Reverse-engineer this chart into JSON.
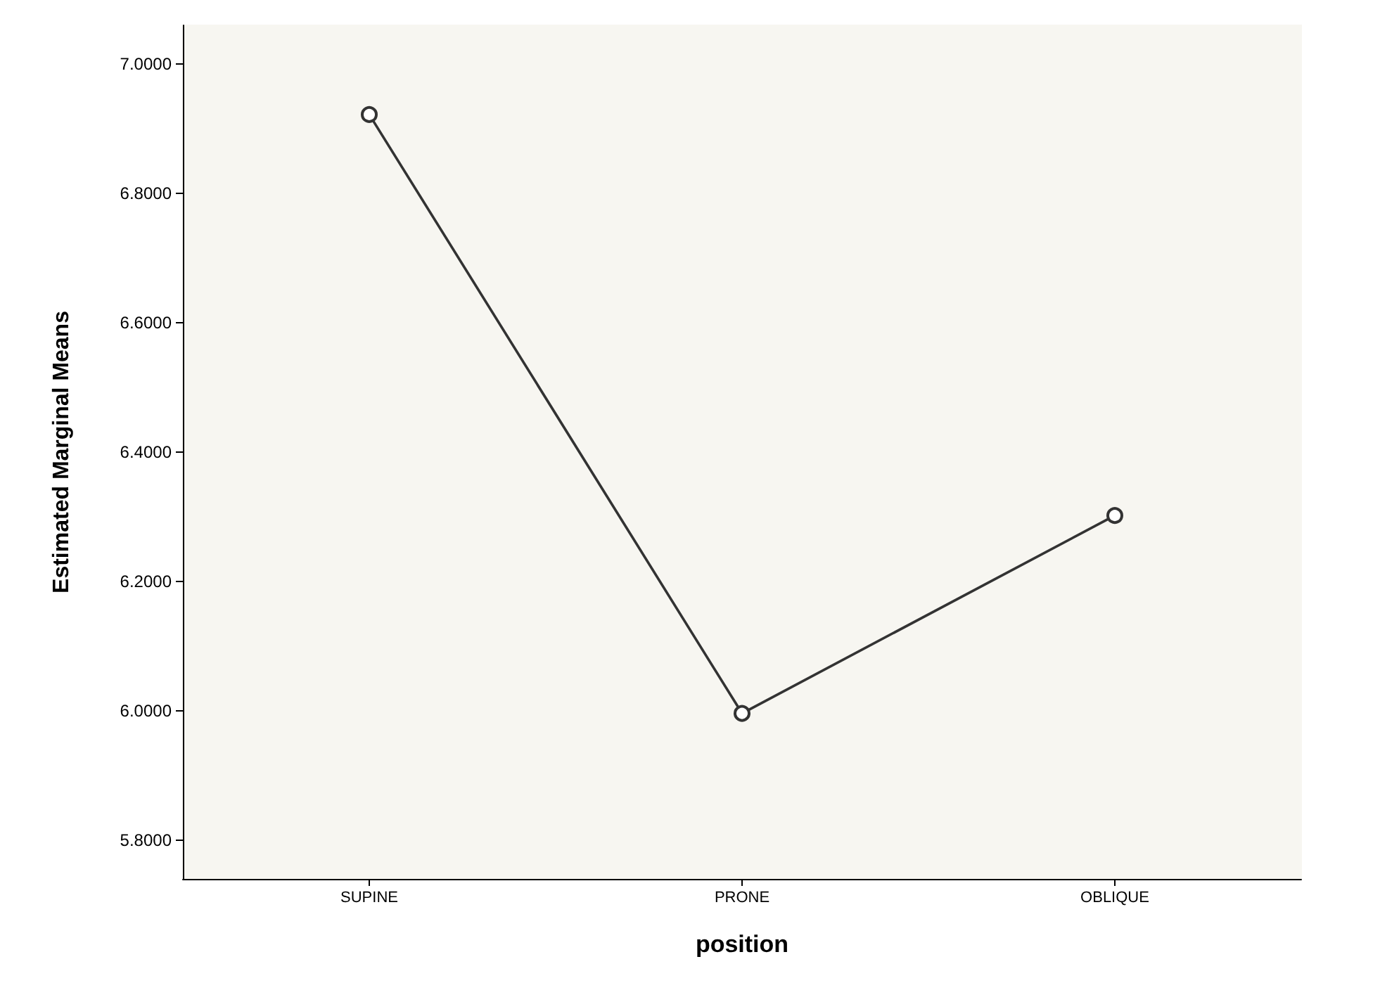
{
  "chart_data": {
    "type": "line",
    "xlabel": "position",
    "ylabel": "Estimated Marginal Means",
    "categories": [
      "SUPINE",
      "PRONE",
      "OBLIQUE"
    ],
    "series": [
      {
        "color": "#333333",
        "values": [
          6.922,
          5.996,
          6.302
        ]
      }
    ],
    "ylim": [
      5.74,
      7.06
    ],
    "yticks": [
      {
        "value": 5.8,
        "label": "5.8000"
      },
      {
        "value": 6.0,
        "label": "6.0000"
      },
      {
        "value": 6.2,
        "label": "6.2000"
      },
      {
        "value": 6.4,
        "label": "6.4000"
      },
      {
        "value": 6.6,
        "label": "6.6000"
      },
      {
        "value": 6.8,
        "label": "6.8000"
      },
      {
        "value": 7.0,
        "label": "7.0000"
      }
    ],
    "grid": false,
    "marker": "circle",
    "line_style": "solid"
  }
}
